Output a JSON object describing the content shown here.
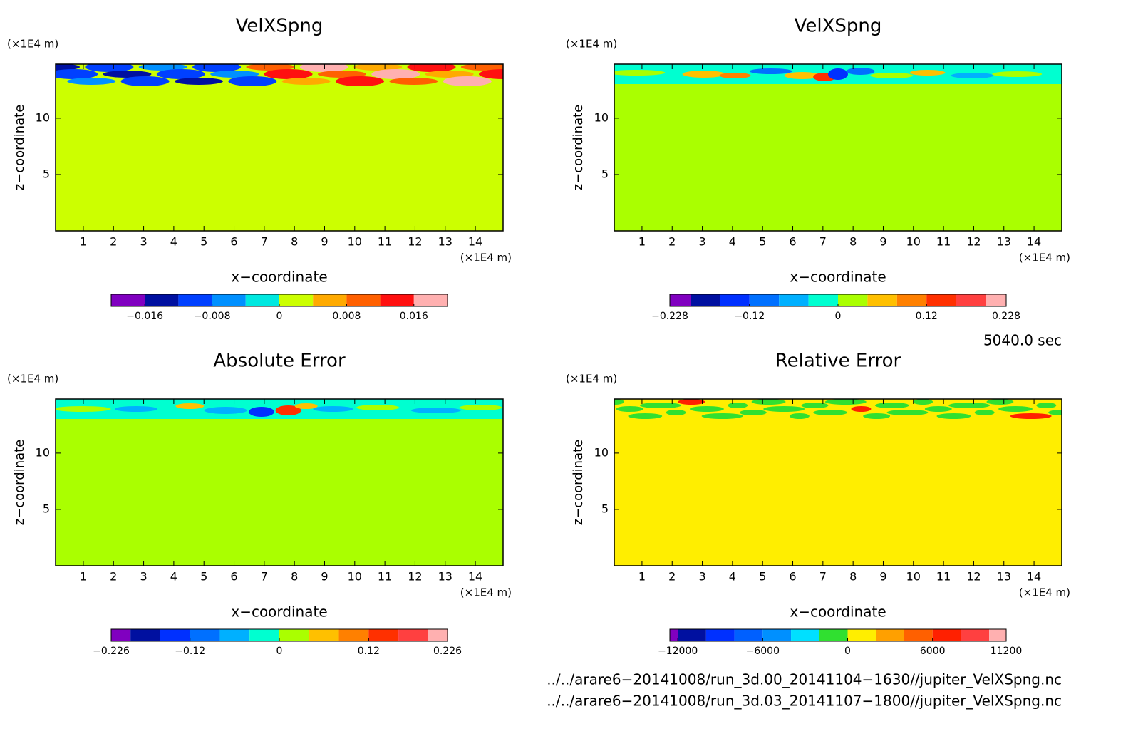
{
  "chart_data": [
    {
      "type": "contour",
      "title": "VelXSpng",
      "y_unit": "(×1E4 m)",
      "y_label": "z−coordinate",
      "x_unit": "(×1E4 m)",
      "x_label": "x−coordinate",
      "xlim": [
        0.08,
        14.92
      ],
      "ylim": [
        0,
        14.8
      ],
      "xticks": [
        1,
        2,
        3,
        4,
        5,
        6,
        7,
        8,
        9,
        10,
        11,
        12,
        13,
        14
      ],
      "yticks": [
        5,
        10
      ],
      "fill_color": "#ccff00",
      "colorbar": {
        "levels": [
          -0.02,
          -0.016,
          -0.012,
          -0.008,
          -0.004,
          0,
          0.004,
          0.008,
          0.012,
          0.016,
          0.02
        ],
        "colors": [
          "#8000c0",
          "#0010a0",
          "#0040ff",
          "#0090ff",
          "#00e8e0",
          "#ccff00",
          "#ffaa00",
          "#ff6000",
          "#ff1010",
          "#ffb0b0"
        ],
        "ticks": [
          {
            "value": -0.016,
            "label": "−0.016"
          },
          {
            "value": -0.008,
            "label": "−0.008"
          },
          0,
          0.008,
          0.016
        ]
      }
    },
    {
      "type": "contour",
      "title": "VelXSpng",
      "y_unit": "(×1E4 m)",
      "y_label": "z−coordinate",
      "x_unit": "(×1E4 m)",
      "x_label": "x−coordinate",
      "xlim": [
        0.08,
        14.92
      ],
      "ylim": [
        0,
        14.8
      ],
      "xticks": [
        1,
        2,
        3,
        4,
        5,
        6,
        7,
        8,
        9,
        10,
        11,
        12,
        13,
        14
      ],
      "yticks": [
        5,
        10
      ],
      "fill_color": "#aaff00",
      "colorbar": {
        "levels": [
          -0.228,
          -0.2,
          -0.16,
          -0.12,
          -0.08,
          -0.04,
          0,
          0.04,
          0.08,
          0.12,
          0.16,
          0.2,
          0.228
        ],
        "colors": [
          "#8000c0",
          "#0010a0",
          "#0030ff",
          "#0070ff",
          "#00b0ff",
          "#00ffd0",
          "#aaff00",
          "#ffc000",
          "#ff8000",
          "#ff3000",
          "#ff4040",
          "#ffb0b0"
        ],
        "ticks": [
          {
            "value": -0.228,
            "label": "−0.228"
          },
          {
            "value": -0.12,
            "label": "−0.12"
          },
          0,
          0.12,
          0.228
        ]
      }
    },
    {
      "type": "contour",
      "title": "Absolute Error",
      "y_unit": "(×1E4 m)",
      "y_label": "z−coordinate",
      "x_unit": "(×1E4 m)",
      "x_label": "x−coordinate",
      "xlim": [
        0.08,
        14.92
      ],
      "ylim": [
        0,
        14.8
      ],
      "xticks": [
        1,
        2,
        3,
        4,
        5,
        6,
        7,
        8,
        9,
        10,
        11,
        12,
        13,
        14
      ],
      "yticks": [
        5,
        10
      ],
      "fill_color": "#aaff00",
      "colorbar": {
        "levels": [
          -0.226,
          -0.2,
          -0.16,
          -0.12,
          -0.08,
          -0.04,
          0,
          0.04,
          0.08,
          0.12,
          0.16,
          0.2,
          0.226
        ],
        "colors": [
          "#8000c0",
          "#0010a0",
          "#0030ff",
          "#0070ff",
          "#00b0ff",
          "#00ffd0",
          "#aaff00",
          "#ffc000",
          "#ff8000",
          "#ff3000",
          "#ff4040",
          "#ffb0b0"
        ],
        "ticks": [
          {
            "value": -0.226,
            "label": "−0.226"
          },
          {
            "value": -0.12,
            "label": "−0.12"
          },
          0,
          0.12,
          0.226
        ]
      }
    },
    {
      "type": "contour",
      "title": "Relative Error",
      "y_unit": "(×1E4 m)",
      "y_label": "z−coordinate",
      "x_unit": "(×1E4 m)",
      "x_label": "x−coordinate",
      "xlim": [
        0.08,
        14.92
      ],
      "ylim": [
        0,
        14.8
      ],
      "xticks": [
        1,
        2,
        3,
        4,
        5,
        6,
        7,
        8,
        9,
        10,
        11,
        12,
        13,
        14
      ],
      "yticks": [
        5,
        10
      ],
      "fill_color": "#ffee00",
      "colorbar": {
        "levels": [
          -12560,
          -12000,
          -10000,
          -8000,
          -6000,
          -4000,
          -2000,
          0,
          2000,
          4000,
          6000,
          8000,
          10000,
          11200
        ],
        "colors": [
          "#8000c0",
          "#0010a0",
          "#0030ff",
          "#0060ff",
          "#0090ff",
          "#00e0ff",
          "#30e030",
          "#ffee00",
          "#ffa000",
          "#ff6000",
          "#ff2000",
          "#ff4040",
          "#ffb0b0"
        ],
        "ticks": [
          {
            "value": -12000,
            "label": "−12000"
          },
          {
            "value": -6000,
            "label": "−6000"
          },
          0,
          6000,
          11200
        ]
      }
    }
  ],
  "time_label": "5040.0 sec",
  "files": [
    "../../arare6−20141008/run_3d.00_20141104−1630//jupiter_VelXSpng.nc",
    "../../arare6−20141008/run_3d.03_20141107−1800//jupiter_VelXSpng.nc"
  ]
}
